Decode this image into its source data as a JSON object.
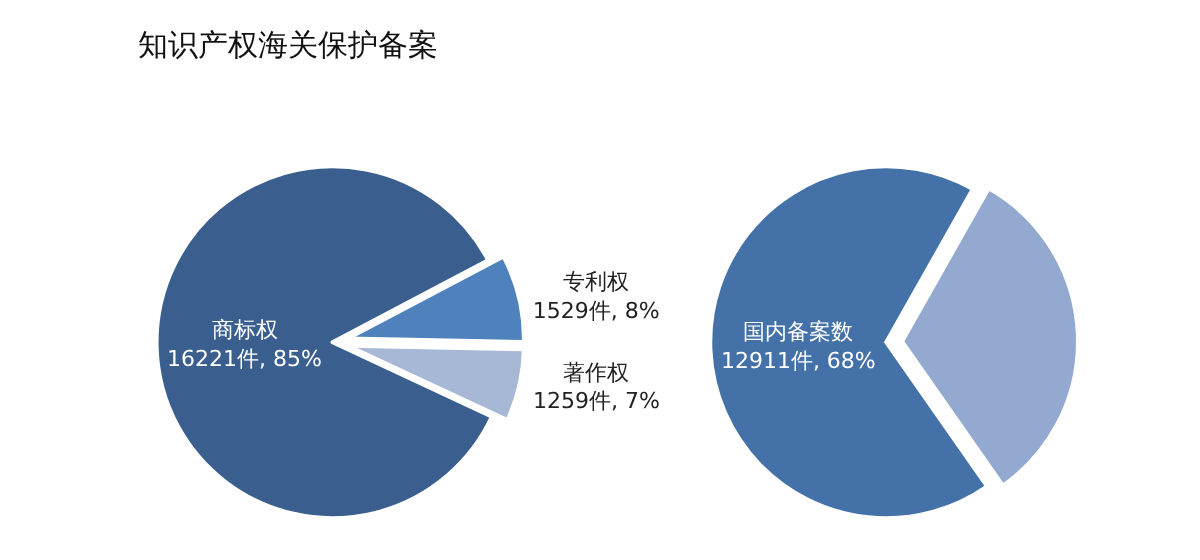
{
  "chart_data": [
    {
      "type": "pie",
      "title": "知识产权海关保护备案",
      "categories": [
        "商标权",
        "专利权",
        "著作权"
      ],
      "values": [
        16221,
        1529,
        1259
      ],
      "colors": [
        "#3a5f8f",
        "#4f81bd",
        "#a6b8d6"
      ],
      "value_labels": [
        "16221件, 85%",
        "1529件, 8%",
        "1259件, 7%"
      ],
      "legend": false
    },
    {
      "type": "pie",
      "categories": [
        "国内备案数",
        null
      ],
      "values": [
        12911,
        6098
      ],
      "colors": [
        "#4472a8",
        "#93a9cf"
      ],
      "value_labels": [
        "12911件, 68%",
        null
      ],
      "legend": false
    }
  ]
}
